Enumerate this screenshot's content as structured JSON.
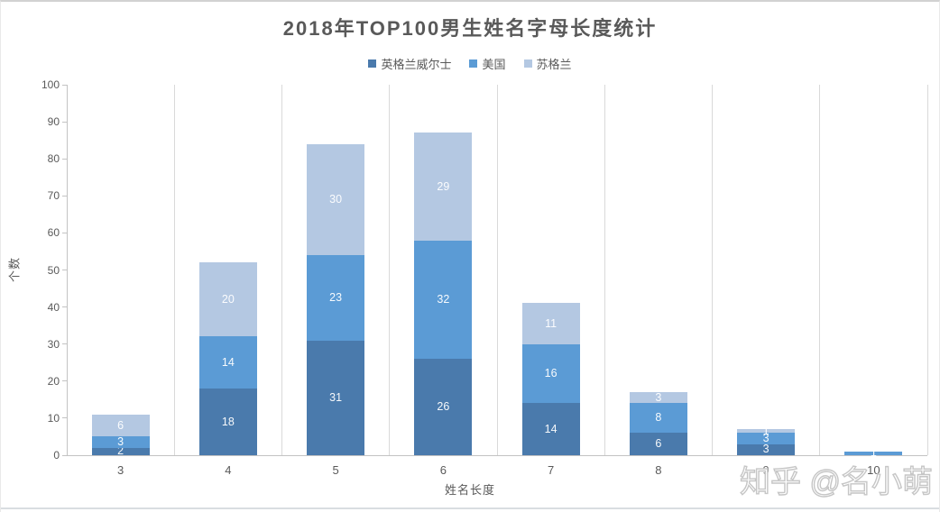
{
  "page": {
    "watermark": "知乎 @名小萌"
  },
  "chart_data": {
    "type": "bar",
    "stacked": true,
    "title": "2018年TOP100男生姓名字母长度统计",
    "xlabel": "姓名长度",
    "ylabel": "个数",
    "ylim": [
      0,
      100
    ],
    "ytick_step": 10,
    "grid": "vertical-category-boundaries",
    "legend_position": "top",
    "data_labels": true,
    "data_label_color": "#ffffff",
    "categories": [
      "3",
      "4",
      "5",
      "6",
      "7",
      "8",
      "9",
      "10"
    ],
    "series": [
      {
        "name": "英格兰威尔士",
        "color": "#4a7aac",
        "values": [
          2,
          18,
          31,
          26,
          14,
          6,
          3,
          0
        ]
      },
      {
        "name": "美国",
        "color": "#5b9bd5",
        "values": [
          3,
          14,
          23,
          32,
          16,
          8,
          3,
          1
        ]
      },
      {
        "name": "苏格兰",
        "color": "#b4c8e2",
        "values": [
          6,
          20,
          30,
          29,
          11,
          3,
          1,
          0
        ]
      }
    ]
  }
}
